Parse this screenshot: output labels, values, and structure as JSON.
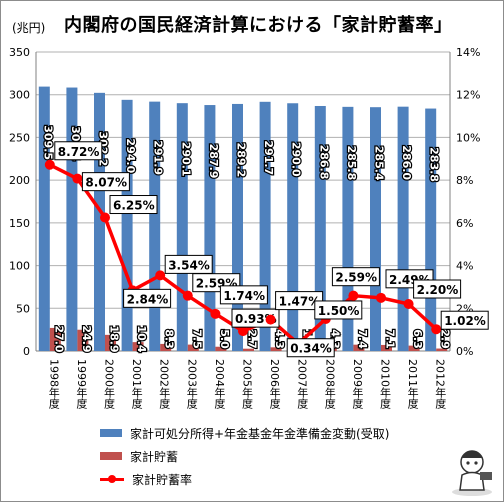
{
  "title": "内閣府の国民経済計算における「家計貯蓄率」",
  "unit_label": "(兆円)",
  "chart_data": {
    "type": "bar",
    "categories": [
      "1998年度",
      "1999年度",
      "2000年度",
      "2001年度",
      "2002年度",
      "2003年度",
      "2004年度",
      "2005年度",
      "2006年度",
      "2007年度",
      "2008年度",
      "2009年度",
      "2010年度",
      "2011年度",
      "2012年度"
    ],
    "series": [
      {
        "name": "家計可処分所得+年金基金年金準備金変動(受取)",
        "axis": "left",
        "color": "#4f81bd",
        "values": [
          309.5,
          308.4,
          302.2,
          294.0,
          291.9,
          290.1,
          287.9,
          289.2,
          291.7,
          290.0,
          286.8,
          285.8,
          285.4,
          286.0,
          283.8
        ],
        "labels": [
          "309.5",
          "308.4",
          "302.2",
          "294.0",
          "291.9",
          "290.1",
          "287.9",
          "289.2",
          "291.7",
          "290.0",
          "286.8",
          "285.8",
          "285.4",
          "286.0",
          "283.8"
        ]
      },
      {
        "name": "家計貯蓄",
        "axis": "left",
        "color": "#c0504d",
        "values": [
          27.0,
          24.9,
          18.9,
          10.4,
          8.3,
          7.5,
          5.0,
          2.7,
          4.3,
          1.0,
          4.3,
          7.4,
          7.1,
          6.3,
          2.9
        ],
        "labels": [
          "27.0",
          "24.9",
          "18.9",
          "10.4",
          "8.3",
          "7.5",
          "5.0",
          "2.7",
          "4.3",
          "1.0",
          "4.3",
          "7.4",
          "7.1",
          "6.3",
          "2.9"
        ]
      },
      {
        "name": "家計貯蓄率",
        "axis": "right",
        "type": "line",
        "color": "#ff0000",
        "values": [
          8.72,
          8.07,
          6.25,
          2.84,
          3.54,
          2.59,
          1.74,
          0.93,
          1.47,
          0.34,
          1.5,
          2.59,
          2.49,
          2.2,
          1.02
        ],
        "labels": [
          "8.72%",
          "8.07%",
          "6.25%",
          "2.84%",
          "3.54%",
          "2.59%",
          "1.74%",
          "0.93%",
          "1.47%",
          "0.34%",
          "1.50%",
          "2.59%",
          "2.49%",
          "2.20%",
          "1.02%"
        ]
      }
    ],
    "y_left": {
      "min": 0,
      "max": 350,
      "ticks": [
        "0",
        "50",
        "100",
        "150",
        "200",
        "250",
        "300",
        "350"
      ]
    },
    "y_right": {
      "min": 0,
      "max": 14,
      "ticks": [
        "0%",
        "2%",
        "4%",
        "6%",
        "8%",
        "10%",
        "12%",
        "14%"
      ]
    },
    "grid": true,
    "legend_position": "bottom"
  }
}
